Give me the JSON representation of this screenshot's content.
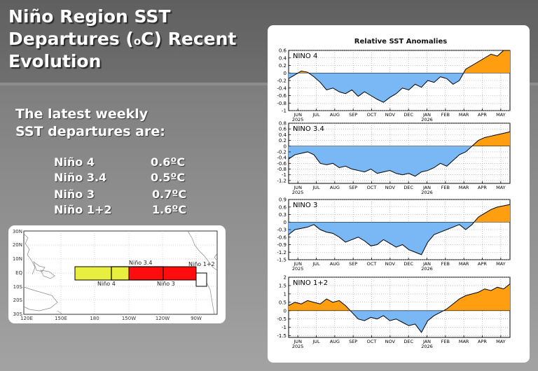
{
  "slide": {
    "title_line1": "Niño Region SST",
    "title_line2_pre": "Departures (",
    "title_sup": "o",
    "title_line2_post": "C) Recent",
    "title_line3": "Evolution"
  },
  "latest": {
    "heading_line1": "The latest weekly",
    "heading_line2": "SST departures are:",
    "rows": [
      {
        "name": "Niño 4",
        "value": "0.6ºC"
      },
      {
        "name": "Niño 3.4",
        "value": "0.5ºC"
      },
      {
        "name": "Niño 3",
        "value": "0.7ºC"
      },
      {
        "name": "Niño 1+2",
        "value": "1.6ºC"
      }
    ]
  },
  "map": {
    "lat_labels": [
      "30N",
      "20N",
      "10N",
      "EQ",
      "10S",
      "20S",
      "30S"
    ],
    "lon_labels": [
      "120E",
      "150E",
      "180",
      "150W",
      "120W",
      "90W"
    ],
    "regions": [
      {
        "name": "Niño 4",
        "color": "#e8ef3e"
      },
      {
        "name": "Niño 3.4",
        "color": "#ffffff"
      },
      {
        "name": "Niño 3",
        "color": "#ff0d0d"
      },
      {
        "name": "Niño 1+2",
        "color": "#ffffff"
      }
    ]
  },
  "chart_data": [
    {
      "type": "area",
      "title": "Relative SST Anomalies",
      "panel_label": "NINO 4",
      "x_labels": [
        "JUN",
        "JUL",
        "AUG",
        "SEP",
        "OCT",
        "NOV",
        "DEC",
        "JAN",
        "FEB",
        "MAR",
        "APR",
        "MAY"
      ],
      "year_labels": {
        "JUN": "2025",
        "JAN": "2026"
      },
      "y_ticks": [
        0.6,
        0.4,
        0.2,
        0,
        -0.2,
        -0.4,
        -0.6,
        -0.8,
        -1
      ],
      "ylim": [
        -1,
        0.6
      ],
      "positive_color": "#ff9e10",
      "negative_color": "#7ab8f5",
      "values": [
        -0.15,
        -0.05,
        0.05,
        0.02,
        -0.1,
        -0.25,
        -0.45,
        -0.4,
        -0.5,
        -0.55,
        -0.45,
        -0.62,
        -0.5,
        -0.6,
        -0.7,
        -0.78,
        -0.65,
        -0.55,
        -0.4,
        -0.45,
        -0.3,
        -0.38,
        -0.2,
        -0.25,
        -0.1,
        -0.15,
        -0.3,
        -0.2,
        0.1,
        0.2,
        0.3,
        0.4,
        0.5,
        0.45,
        0.6,
        0.6
      ]
    },
    {
      "type": "area",
      "panel_label": "NINO 3.4",
      "x_labels": [
        "JUN",
        "JUL",
        "AUG",
        "SEP",
        "OCT",
        "NOV",
        "DEC",
        "JAN",
        "FEB",
        "MAR",
        "APR",
        "MAY"
      ],
      "year_labels": {
        "JUN": "2025",
        "JAN": "2026"
      },
      "y_ticks": [
        0.8,
        0.6,
        0.4,
        0.2,
        0,
        -0.2,
        -0.4,
        -0.6,
        -0.8,
        -1,
        -1.2
      ],
      "ylim": [
        -1.3,
        0.8
      ],
      "positive_color": "#ff9e10",
      "negative_color": "#7ab8f5",
      "values": [
        -0.45,
        -0.3,
        -0.25,
        -0.2,
        -0.3,
        -0.6,
        -0.65,
        -0.6,
        -0.75,
        -0.7,
        -0.8,
        -0.85,
        -0.9,
        -0.8,
        -0.95,
        -0.9,
        -0.85,
        -0.95,
        -1.0,
        -0.95,
        -1.05,
        -0.9,
        -0.85,
        -0.75,
        -0.6,
        -0.7,
        -0.5,
        -0.3,
        -0.2,
        0.0,
        0.2,
        0.3,
        0.35,
        0.4,
        0.45,
        0.5
      ]
    },
    {
      "type": "area",
      "panel_label": "NINO 3",
      "x_labels": [
        "JUN",
        "JUL",
        "AUG",
        "SEP",
        "OCT",
        "NOV",
        "DEC",
        "JAN",
        "FEB",
        "MAR",
        "APR",
        "MAY"
      ],
      "year_labels": {
        "JUN": "2025",
        "JAN": "2026"
      },
      "y_ticks": [
        0.9,
        0.6,
        0.3,
        0,
        -0.3,
        -0.6,
        -0.9,
        -1.2,
        -1.5
      ],
      "ylim": [
        -1.5,
        0.9
      ],
      "positive_color": "#ff9e10",
      "negative_color": "#7ab8f5",
      "values": [
        -0.5,
        -0.3,
        -0.25,
        -0.2,
        -0.1,
        -0.3,
        -0.4,
        -0.45,
        -0.6,
        -0.8,
        -0.7,
        -0.6,
        -0.75,
        -0.95,
        -0.9,
        -0.7,
        -0.85,
        -1.0,
        -0.9,
        -1.1,
        -1.2,
        -1.3,
        -0.8,
        -0.5,
        -0.4,
        -0.3,
        -0.2,
        -0.1,
        -0.3,
        -0.1,
        0.2,
        0.35,
        0.5,
        0.6,
        0.65,
        0.7
      ]
    },
    {
      "type": "area",
      "panel_label": "NINO 1+2",
      "x_labels": [
        "JUN",
        "JUL",
        "AUG",
        "SEP",
        "OCT",
        "NOV",
        "DEC",
        "JAN",
        "FEB",
        "MAR",
        "APR",
        "MAY"
      ],
      "year_labels": {
        "JUN": "2025",
        "JAN": "2026"
      },
      "y_ticks": [
        2,
        1.5,
        1,
        0.5,
        0,
        -0.5,
        -1,
        -1.5
      ],
      "ylim": [
        -1.6,
        2
      ],
      "positive_color": "#ff9e10",
      "negative_color": "#7ab8f5",
      "values": [
        0.3,
        0.5,
        0.4,
        0.6,
        0.5,
        0.4,
        0.7,
        0.5,
        0.6,
        0.3,
        -0.1,
        -0.5,
        -0.6,
        -0.4,
        -0.5,
        -0.3,
        -0.6,
        -0.5,
        -0.7,
        -0.9,
        -0.8,
        -1.3,
        -0.6,
        -0.3,
        -0.1,
        0.1,
        0.4,
        0.7,
        0.9,
        1.0,
        1.1,
        1.3,
        1.2,
        1.4,
        1.3,
        1.6
      ]
    }
  ]
}
